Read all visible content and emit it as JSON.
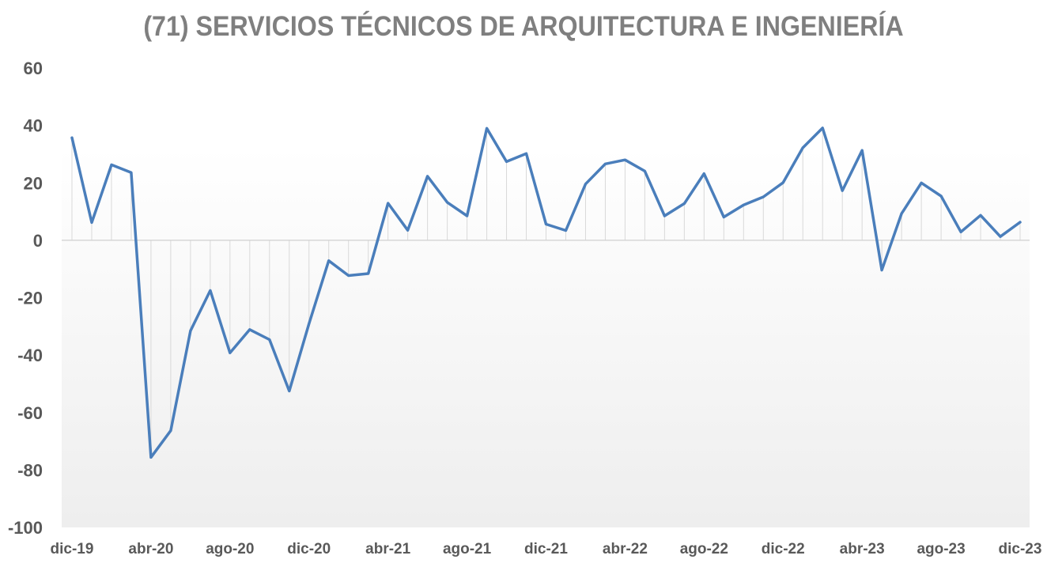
{
  "chart_data": {
    "type": "line",
    "title": "(71) SERVICIOS TÉCNICOS DE ARQUITECTURA E INGENIERÍA",
    "xlabel": "",
    "ylabel": "",
    "ylim": [
      -100,
      60
    ],
    "yticks": [
      "60",
      "40",
      "20",
      "0",
      "-20",
      "-40",
      "-60",
      "-80",
      "-100"
    ],
    "xtick_labels": [
      "dic-19",
      "abr-20",
      "ago-20",
      "dic-20",
      "abr-21",
      "ago-21",
      "dic-21",
      "abr-22",
      "ago-22",
      "dic-22",
      "abr-23",
      "ago-23",
      "dic-23"
    ],
    "x": [
      "dic-19",
      "ene-20",
      "feb-20",
      "mar-20",
      "abr-20",
      "may-20",
      "jun-20",
      "jul-20",
      "ago-20",
      "sep-20",
      "oct-20",
      "nov-20",
      "dic-20",
      "ene-21",
      "feb-21",
      "mar-21",
      "abr-21",
      "may-21",
      "jun-21",
      "jul-21",
      "ago-21",
      "sep-21",
      "oct-21",
      "nov-21",
      "dic-21",
      "ene-22",
      "feb-22",
      "mar-22",
      "abr-22",
      "may-22",
      "jun-22",
      "jul-22",
      "ago-22",
      "sep-22",
      "oct-22",
      "nov-22",
      "dic-22",
      "ene-23",
      "feb-23",
      "mar-23",
      "abr-23",
      "may-23",
      "jun-23",
      "jul-23",
      "ago-23",
      "sep-23",
      "oct-23",
      "nov-23",
      "dic-23"
    ],
    "series": [
      {
        "values": [
          35.7,
          6.2,
          26.3,
          23.6,
          -75.6,
          -66.3,
          -31.5,
          -17.5,
          -39.2,
          -31.1,
          -34.6,
          -52.5,
          -29.0,
          -7.1,
          -12.3,
          -11.6,
          12.9,
          3.5,
          22.3,
          13.2,
          8.5,
          39.0,
          27.4,
          30.2,
          5.6,
          3.4,
          19.6,
          26.6,
          28.0,
          24.1,
          8.5,
          12.8,
          23.2,
          8.1,
          12.3,
          15.1,
          20.1,
          32.2,
          39.1,
          17.3,
          31.3,
          -10.4,
          9.3,
          20.0,
          15.4,
          2.9,
          8.7,
          1.3,
          6.3
        ]
      }
    ],
    "line_color": "#4a7ebb",
    "grid": false,
    "legend": "none"
  }
}
